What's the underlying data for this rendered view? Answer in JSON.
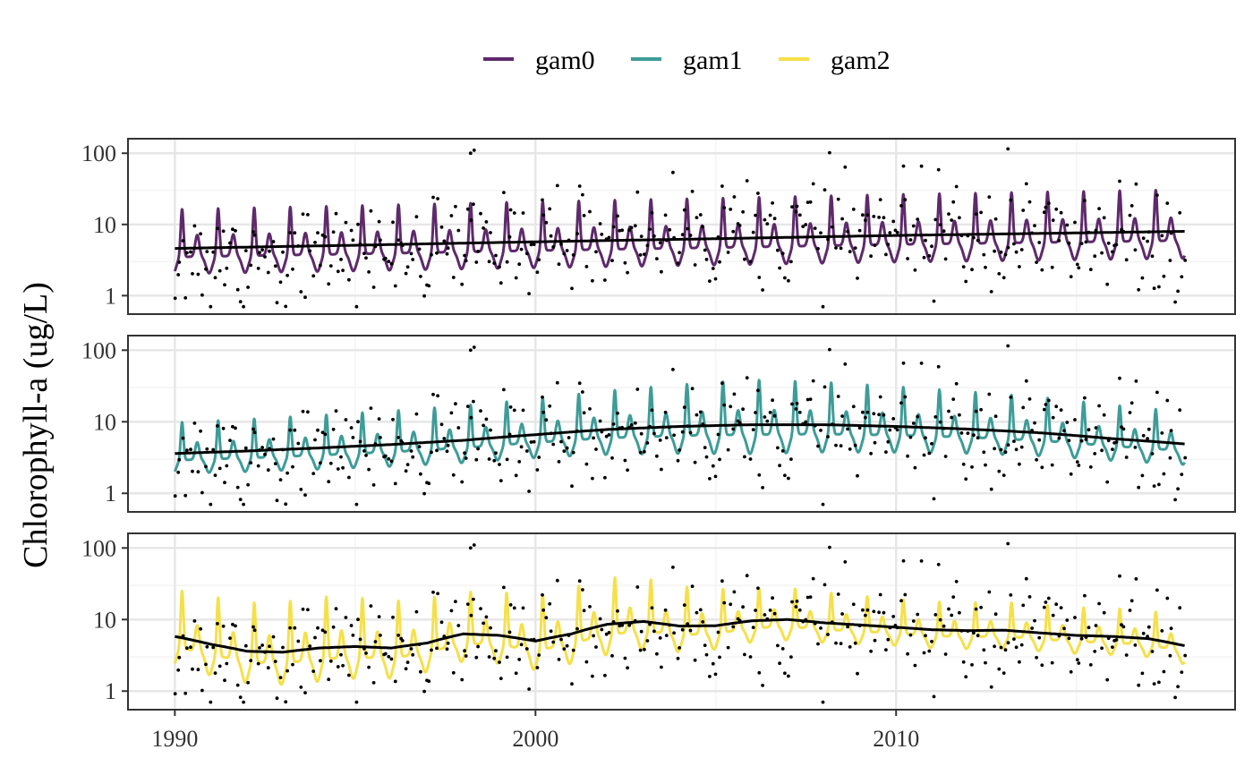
{
  "chart_data": {
    "type": "line",
    "ylabel": "Chlorophyll-a (ug/L)",
    "xlabel": "",
    "y_scale": "log10",
    "ylim": [
      0.55,
      160
    ],
    "xlim": [
      1988.7,
      2019.4
    ],
    "x_ticks": [
      1990,
      2000,
      2010
    ],
    "x_tick_labels": [
      "1990",
      "2000",
      "2010"
    ],
    "y_ticks": [
      1,
      10,
      100
    ],
    "y_tick_labels": [
      "1",
      "10",
      "100"
    ],
    "grid": true,
    "legend_position": "top",
    "legend": [
      {
        "name": "gam0",
        "color": "#5e2a6b"
      },
      {
        "name": "gam1",
        "color": "#3e9c98"
      },
      {
        "name": "gam2",
        "color": "#f5e04a"
      }
    ],
    "trend_color": "#000000",
    "panels": [
      {
        "model": "gam0",
        "color": "#5e2a6b",
        "seasonal_amplitude": [
          [
            1990,
            0.42
          ],
          [
            2019,
            0.45
          ]
        ],
        "trend": [
          [
            1990.0,
            4.6
          ],
          [
            1995,
            5.1
          ],
          [
            2000,
            5.7
          ],
          [
            2005,
            6.3
          ],
          [
            2010,
            7.0
          ],
          [
            2015,
            7.6
          ],
          [
            2018.0,
            8.0
          ]
        ]
      },
      {
        "model": "gam1",
        "color": "#3e9c98",
        "seasonal_amplitude": [
          [
            1990,
            0.33
          ],
          [
            2000,
            0.38
          ],
          [
            2006,
            0.48
          ],
          [
            2012,
            0.4
          ],
          [
            2019,
            0.33
          ]
        ],
        "trend": [
          [
            1990.0,
            3.6
          ],
          [
            1992,
            3.9
          ],
          [
            1994,
            4.3
          ],
          [
            1996,
            4.8
          ],
          [
            1998,
            5.5
          ],
          [
            2000,
            6.6
          ],
          [
            2002,
            7.8
          ],
          [
            2004,
            8.6
          ],
          [
            2006,
            9.1
          ],
          [
            2008,
            9.1
          ],
          [
            2010,
            8.6
          ],
          [
            2012,
            7.9
          ],
          [
            2014,
            7.0
          ],
          [
            2016,
            5.8
          ],
          [
            2018.0,
            4.9
          ]
        ]
      },
      {
        "model": "gam2",
        "color": "#f5e04a",
        "seasonal_amplitude": [
          [
            1990,
            0.5
          ],
          [
            1992,
            0.52
          ],
          [
            1994,
            0.55
          ],
          [
            1998,
            0.45
          ],
          [
            2002,
            0.5
          ],
          [
            2006,
            0.35
          ],
          [
            2010,
            0.3
          ],
          [
            2014,
            0.3
          ],
          [
            2019,
            0.3
          ]
        ],
        "trend": [
          [
            1990.0,
            5.8
          ],
          [
            1991,
            4.5
          ],
          [
            1992,
            3.6
          ],
          [
            1993,
            3.5
          ],
          [
            1994,
            4.0
          ],
          [
            1995,
            4.2
          ],
          [
            1996,
            4.0
          ],
          [
            1997,
            4.7
          ],
          [
            1998,
            6.3
          ],
          [
            1999,
            6.0
          ],
          [
            2000,
            5.0
          ],
          [
            2001,
            6.3
          ],
          [
            2002,
            8.6
          ],
          [
            2003,
            9.4
          ],
          [
            2004,
            8.1
          ],
          [
            2005,
            8.2
          ],
          [
            2006,
            9.6
          ],
          [
            2007,
            10.0
          ],
          [
            2008,
            9.0
          ],
          [
            2009,
            8.4
          ],
          [
            2010,
            7.8
          ],
          [
            2011,
            7.2
          ],
          [
            2012,
            7.0
          ],
          [
            2013,
            7.1
          ],
          [
            2014,
            6.5
          ],
          [
            2015,
            6.0
          ],
          [
            2016,
            5.8
          ],
          [
            2017,
            5.4
          ],
          [
            2018.0,
            4.3
          ]
        ]
      }
    ],
    "observation_summary": {
      "n_points": 406,
      "x_range": [
        1990.0,
        2018.0
      ],
      "y_range": [
        0.7,
        120
      ],
      "max_points": [
        [
          1998.2,
          100
        ],
        [
          1998.3,
          110
        ],
        [
          2013.1,
          115
        ]
      ]
    }
  }
}
